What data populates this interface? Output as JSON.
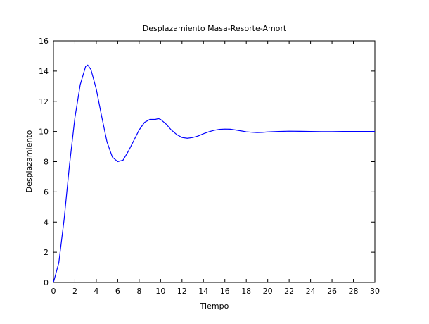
{
  "chart_data": {
    "type": "line",
    "title": "Desplazamiento Masa-Resorte-Amort",
    "xlabel": "Tiempo",
    "ylabel": "Desplazamiento",
    "xlim": [
      0,
      30
    ],
    "ylim": [
      0,
      16
    ],
    "grid": false,
    "x_ticks": [
      0,
      2,
      4,
      6,
      8,
      10,
      12,
      14,
      16,
      18,
      20,
      22,
      24,
      26,
      28,
      30
    ],
    "y_ticks": [
      0,
      2,
      4,
      6,
      8,
      10,
      12,
      14,
      16
    ],
    "x_tick_labels": [
      "0",
      "2",
      "4",
      "6",
      "8",
      "10",
      "12",
      "14",
      "16",
      "18",
      "20",
      "22",
      "24",
      "26",
      "28",
      "30"
    ],
    "y_tick_labels": [
      "0",
      "2",
      "4",
      "6",
      "8",
      "10",
      "12",
      "14",
      "16"
    ],
    "series": [
      {
        "color": "#0000ff",
        "x": [
          0,
          0.5,
          1,
          1.5,
          2,
          2.5,
          3,
          3.2,
          3.5,
          4,
          4.5,
          5,
          5.5,
          6,
          6.5,
          7,
          7.5,
          8,
          8.5,
          9,
          9.5,
          9.8,
          10,
          10.5,
          11,
          11.5,
          12,
          12.5,
          13,
          13.5,
          14,
          14.5,
          15,
          15.5,
          16,
          16.5,
          17,
          17.5,
          18,
          18.5,
          19,
          19.5,
          20,
          21,
          22,
          23,
          24,
          25,
          26,
          27,
          28,
          29,
          30
        ],
        "y": [
          0,
          1.3,
          4.2,
          7.8,
          10.9,
          13.1,
          14.3,
          14.4,
          14.1,
          12.8,
          11.0,
          9.3,
          8.3,
          8.0,
          8.1,
          8.7,
          9.4,
          10.1,
          10.6,
          10.8,
          10.8,
          10.85,
          10.8,
          10.5,
          10.1,
          9.8,
          9.6,
          9.55,
          9.6,
          9.7,
          9.85,
          9.98,
          10.08,
          10.14,
          10.16,
          10.15,
          10.1,
          10.04,
          9.98,
          9.95,
          9.93,
          9.94,
          9.97,
          10.0,
          10.02,
          10.01,
          10.0,
          9.99,
          9.99,
          10.0,
          10.0,
          10.0,
          10.0
        ]
      }
    ]
  }
}
